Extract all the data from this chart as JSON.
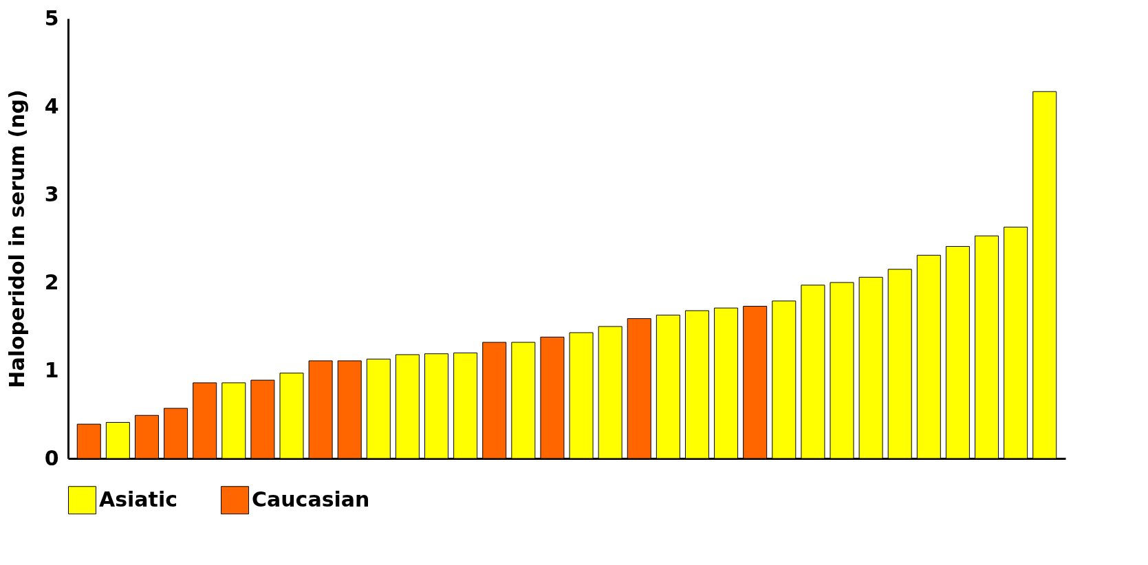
{
  "chart_data": {
    "type": "bar",
    "ylabel": "Haloperidol in serum (ng)",
    "categories": [
      null,
      null,
      null,
      null,
      null,
      null,
      null,
      null,
      null,
      null,
      null,
      null,
      null,
      null,
      null,
      null,
      null,
      null,
      null,
      null,
      null,
      null,
      null,
      null,
      null,
      null,
      null,
      null,
      null,
      null,
      null,
      null,
      null,
      null
    ],
    "series": [
      {
        "name": "Asiatic",
        "color": "#ffff00",
        "values": [
          null,
          0.41,
          null,
          null,
          null,
          0.86,
          null,
          0.97,
          null,
          null,
          1.13,
          1.18,
          1.19,
          1.2,
          null,
          1.32,
          null,
          1.43,
          1.5,
          null,
          1.63,
          1.68,
          1.71,
          null,
          1.79,
          1.97,
          2.0,
          2.06,
          2.15,
          2.31,
          2.41,
          2.53,
          2.63,
          4.17
        ]
      },
      {
        "name": "Caucasian",
        "color": "#ff6600",
        "values": [
          0.39,
          null,
          0.49,
          0.57,
          0.86,
          null,
          0.89,
          null,
          1.11,
          1.11,
          null,
          null,
          null,
          null,
          1.32,
          null,
          1.38,
          null,
          null,
          1.59,
          null,
          null,
          null,
          1.73,
          null,
          null,
          null,
          null,
          null,
          null,
          null,
          null,
          null,
          null
        ]
      }
    ],
    "ylim": [
      0,
      5
    ],
    "yticks": [
      0,
      1,
      2,
      3,
      4,
      5
    ],
    "grid": false,
    "legend": "bottom",
    "tick_labels": "y"
  }
}
